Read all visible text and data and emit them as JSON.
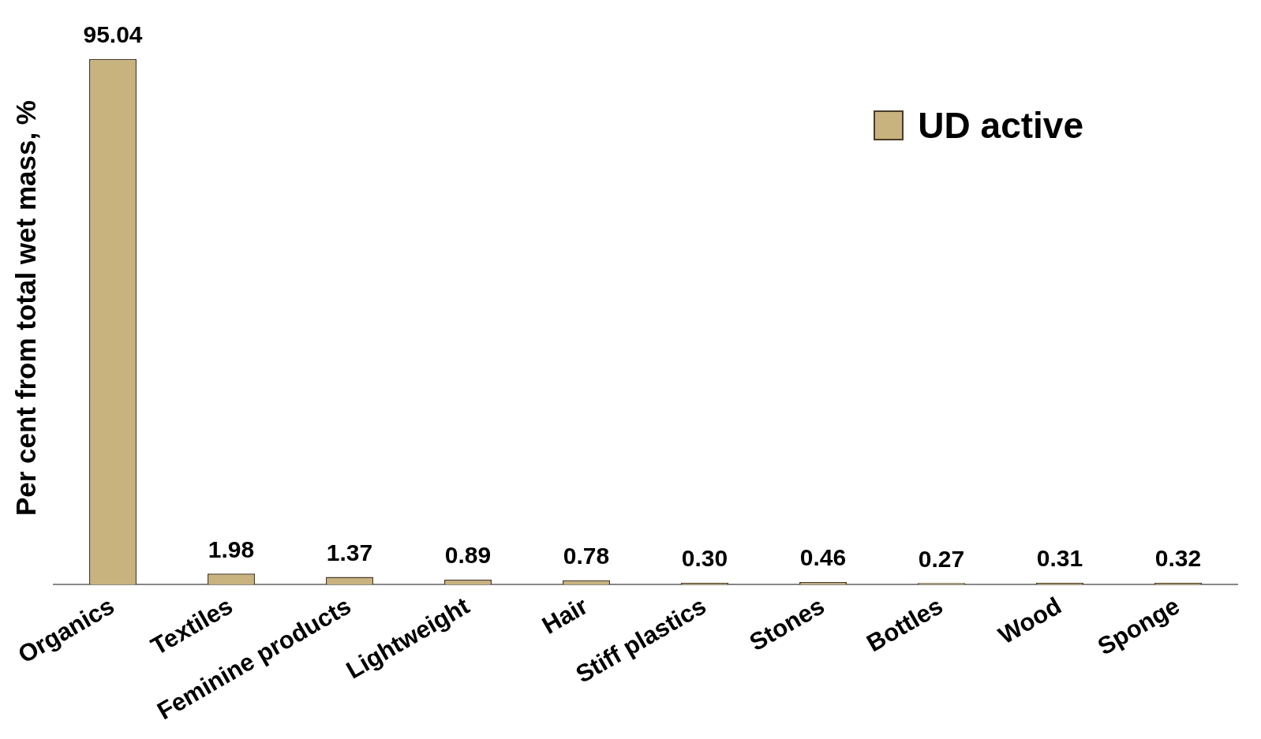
{
  "chart_data": {
    "type": "bar",
    "ylabel": "Per cent from total wet mass, %",
    "categories": [
      "Organics",
      "Textiles",
      "Feminine products",
      "Lightweight",
      "Hair",
      "Stiff plastics",
      "Stones",
      "Bottles",
      "Wood",
      "Sponge"
    ],
    "series": [
      {
        "name": "UD active",
        "color": "#c8b27e",
        "values": [
          95.04,
          1.98,
          1.37,
          0.89,
          0.78,
          0.3,
          0.46,
          0.27,
          0.31,
          0.32
        ],
        "value_labels": [
          "95.04",
          "1.98",
          "1.37",
          "0.89",
          "0.78",
          "0.30",
          "0.46",
          "0.27",
          "0.31",
          "0.32"
        ]
      }
    ],
    "data_labels": true,
    "legend": "top right",
    "grid": false
  }
}
